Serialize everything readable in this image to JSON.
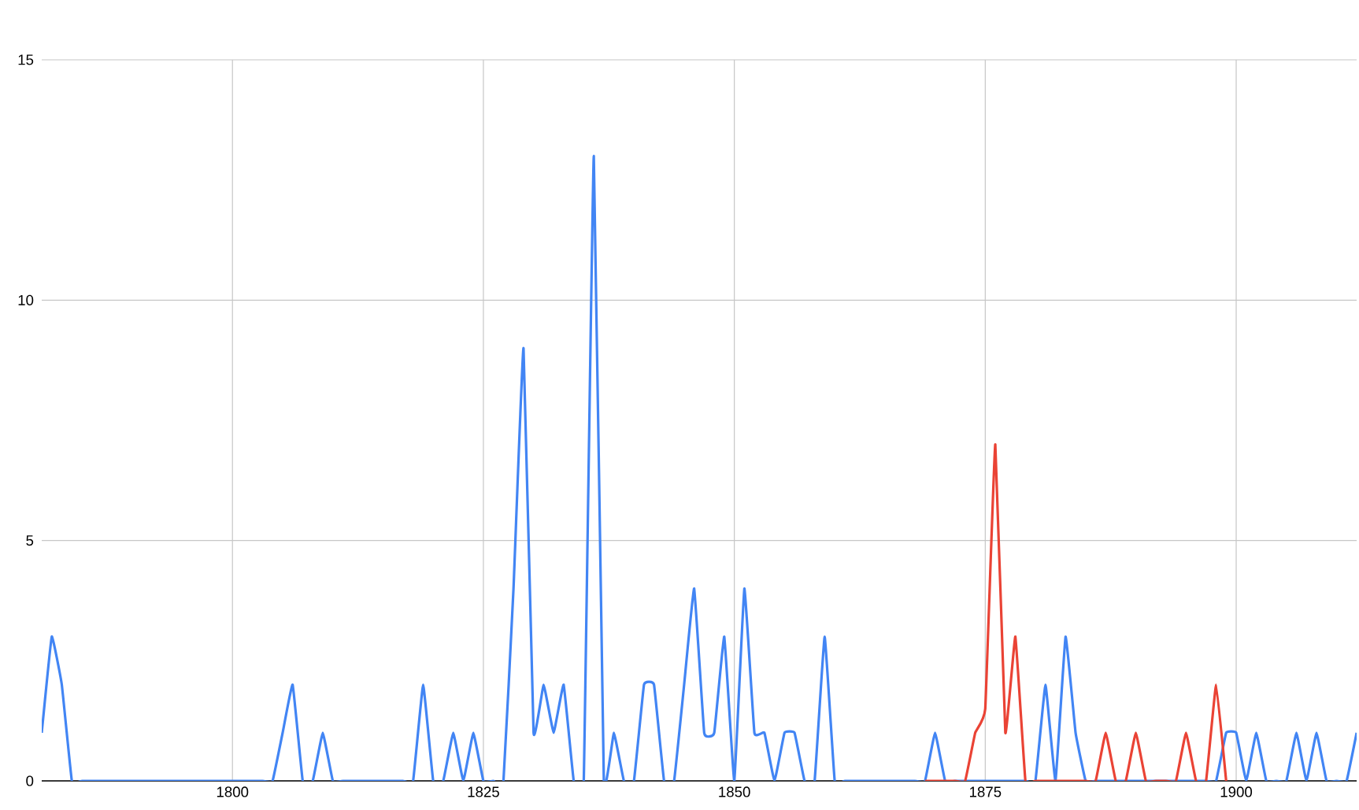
{
  "chart_data": {
    "type": "line",
    "xlim": [
      1781,
      1912
    ],
    "ylim": [
      0,
      15
    ],
    "xticks": [
      1800,
      1825,
      1850,
      1875,
      1900
    ],
    "yticks": [
      0,
      5,
      10,
      15
    ],
    "grid": true,
    "series": [
      {
        "color": "#4285f4",
        "x": [
          1781,
          1782,
          1783,
          1784,
          1785,
          1786,
          1787,
          1788,
          1789,
          1790,
          1791,
          1792,
          1793,
          1794,
          1795,
          1796,
          1797,
          1798,
          1799,
          1800,
          1801,
          1802,
          1803,
          1804,
          1805,
          1806,
          1807,
          1808,
          1809,
          1810,
          1811,
          1812,
          1813,
          1814,
          1815,
          1816,
          1817,
          1818,
          1819,
          1820,
          1821,
          1822,
          1823,
          1824,
          1825,
          1826,
          1827,
          1828,
          1829,
          1830,
          1831,
          1832,
          1833,
          1834,
          1835,
          1836,
          1837,
          1838,
          1839,
          1840,
          1841,
          1842,
          1843,
          1844,
          1845,
          1846,
          1847,
          1848,
          1849,
          1850,
          1851,
          1852,
          1853,
          1854,
          1855,
          1856,
          1857,
          1858,
          1859,
          1860,
          1861,
          1862,
          1863,
          1864,
          1865,
          1866,
          1867,
          1868,
          1869,
          1870,
          1871,
          1872,
          1873,
          1874,
          1875,
          1876,
          1877,
          1878,
          1879,
          1880,
          1881,
          1882,
          1883,
          1884,
          1885,
          1886,
          1887,
          1888,
          1889,
          1890,
          1891,
          1892,
          1893,
          1894,
          1895,
          1896,
          1897,
          1898,
          1899,
          1900,
          1901,
          1902,
          1903,
          1904,
          1905,
          1906,
          1907,
          1908,
          1909,
          1910,
          1911,
          1912
        ],
        "values": [
          1,
          3,
          2,
          0,
          0,
          0,
          0,
          0,
          0,
          0,
          0,
          0,
          0,
          0,
          0,
          0,
          0,
          0,
          0,
          0,
          0,
          0,
          0,
          0,
          1,
          2,
          0,
          0,
          1,
          0,
          0,
          0,
          0,
          0,
          0,
          0,
          0,
          0,
          2,
          0,
          0,
          1,
          0,
          1,
          0,
          0,
          0,
          4,
          9,
          1,
          2,
          1,
          2,
          0,
          0,
          13,
          0,
          1,
          0,
          0,
          2,
          2,
          0,
          0,
          2,
          4,
          1,
          1,
          3,
          0,
          4,
          1,
          1,
          0,
          1,
          1,
          0,
          0,
          3,
          0,
          0,
          0,
          0,
          0,
          0,
          0,
          0,
          0,
          0,
          1,
          0,
          0,
          0,
          0,
          0,
          0,
          0,
          0,
          0,
          0,
          2,
          0,
          3,
          1,
          0,
          0,
          0,
          0,
          0,
          0,
          0,
          0,
          0,
          0,
          0,
          0,
          0,
          0,
          1,
          1,
          0,
          1,
          0,
          0,
          0,
          1,
          0,
          1,
          0,
          0,
          0,
          1
        ]
      },
      {
        "color": "#ea4335",
        "x": [
          1869,
          1870,
          1871,
          1872,
          1873,
          1874,
          1875,
          1876,
          1877,
          1878,
          1879,
          1880,
          1881,
          1882,
          1883,
          1884,
          1885,
          1886,
          1887,
          1888,
          1889,
          1890,
          1891,
          1892,
          1893,
          1894,
          1895,
          1896,
          1897,
          1898,
          1899
        ],
        "values": [
          0,
          0,
          0,
          0,
          0,
          1,
          1.5,
          7,
          1,
          3,
          0,
          0,
          0,
          0,
          0,
          0,
          0,
          0,
          1,
          0,
          0,
          1,
          0,
          0,
          0,
          0,
          1,
          0,
          0,
          2,
          0
        ]
      }
    ]
  }
}
